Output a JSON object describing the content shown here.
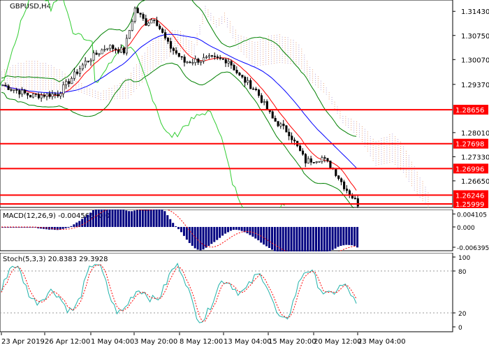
{
  "main_chart": {
    "symbol_label": "GBPUSD,H4",
    "price_axis": [
      "1.31430",
      "1.30750",
      "1.30070",
      "1.29370",
      "1.28010",
      "1.27330",
      "1.26650"
    ],
    "levels": [
      {
        "label": "1.28656",
        "value": 1.28656
      },
      {
        "label": "1.27698",
        "value": 1.27698
      },
      {
        "label": "1.26996",
        "value": 1.26996
      },
      {
        "label": "1.26246",
        "value": 1.26246
      },
      {
        "label": "1.25999",
        "value": 1.25999
      }
    ],
    "colors": {
      "level_line": "#ff0000",
      "level_tag_bg": "#ff0000",
      "level_tag_text": "#ffffff",
      "candles": "#000000",
      "bollinger": "#008000",
      "envelope": "#32cd32",
      "ma_fast": "#ff0000",
      "ma_slow": "#0000ff",
      "cloud_a": "#e8a27a",
      "cloud_b": "#b5a2d6"
    }
  },
  "macd": {
    "label": "MACD(12,26,9) -0.004565 -0.0",
    "axis": [
      "0.004105",
      "0.000",
      "-0.006395"
    ],
    "colors": {
      "histogram": "#000080",
      "signal": "#ff0000"
    }
  },
  "stoch": {
    "label": "Stoch(5,3,3) 20.8383 29.3928",
    "axis": [
      "100",
      "80",
      "20",
      "0"
    ],
    "colors": {
      "main": "#20b2aa",
      "signal": "#ff0000"
    }
  },
  "time_axis": [
    "23 Apr 2019",
    "26 Apr 12:00",
    "1 May 04:00",
    "3 May 20:00",
    "8 May 12:00",
    "13 May 04:00",
    "15 May 20:00",
    "20 May 12:00",
    "23 May 04:00"
  ]
}
